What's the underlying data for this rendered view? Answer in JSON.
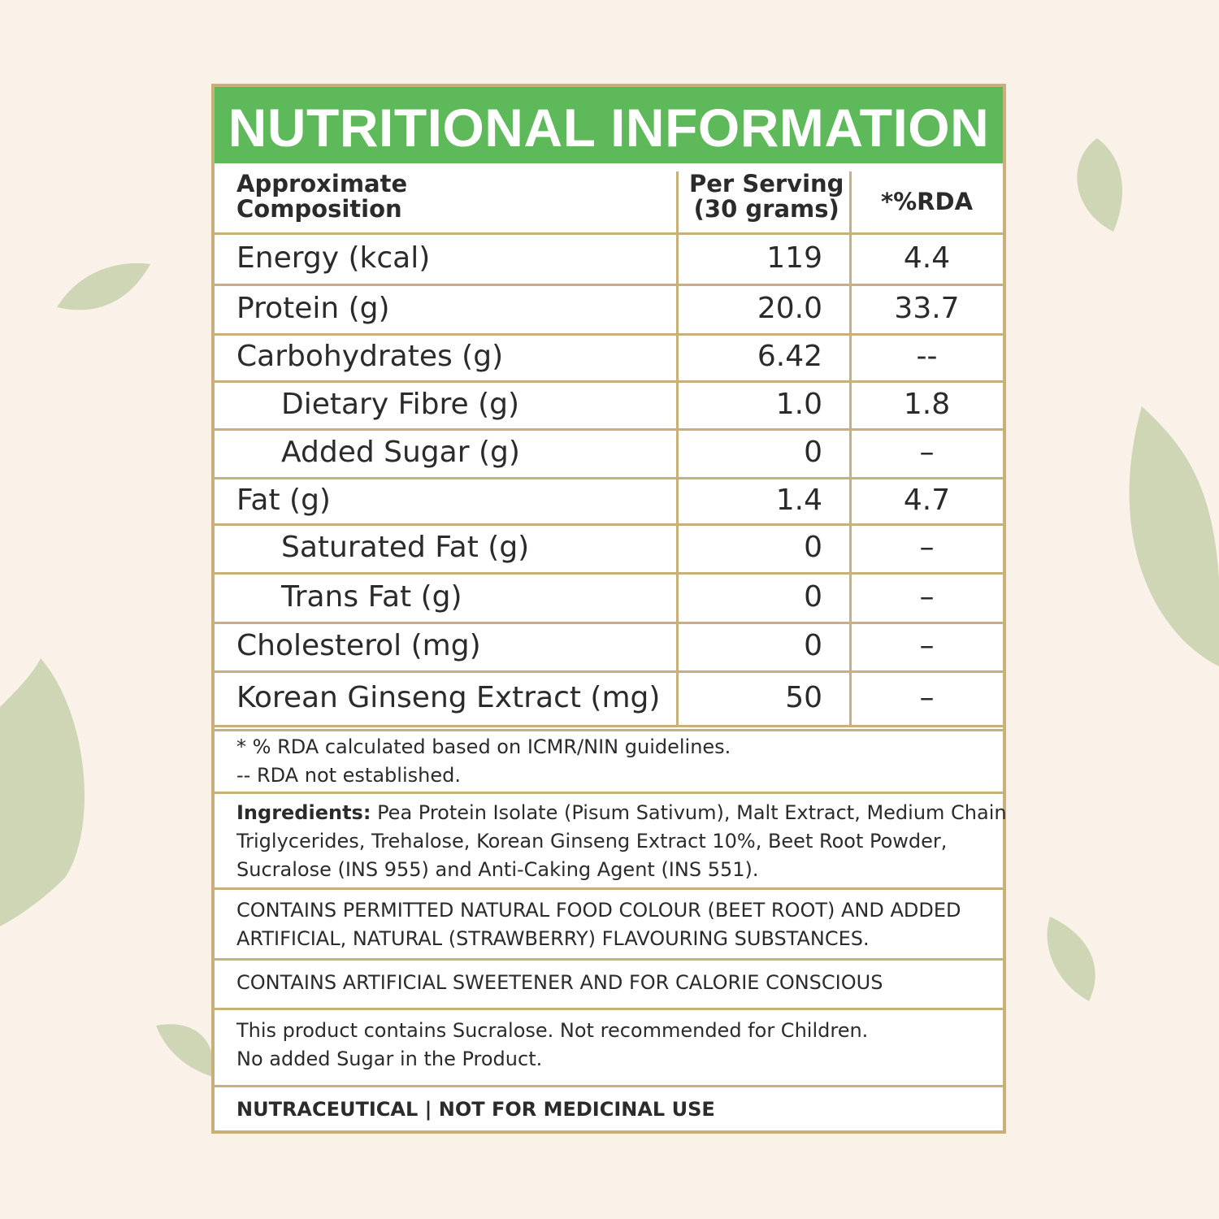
{
  "header": {
    "title": "NUTRITIONAL INFORMATION"
  },
  "table": {
    "headers": [
      [
        "Approximate",
        "Composition"
      ],
      [
        "Per Serving",
        "(30 grams)"
      ],
      [
        "*%RDA"
      ]
    ],
    "rows": [
      [
        "Energy (kcal)",
        "119",
        "4.4"
      ],
      [
        "Protein (g)",
        "20.0",
        "33.7"
      ],
      [
        "Carbohydrates (g)",
        "6.42",
        "--"
      ],
      [
        "Dietary Fibre (g)",
        "1.0",
        "1.8"
      ],
      [
        "Added Sugar (g)",
        "0",
        "–"
      ],
      [
        "Fat (g)",
        "1.4",
        "4.7"
      ],
      [
        "Saturated Fat (g)",
        "0",
        "–"
      ],
      [
        "Trans Fat (g)",
        "0",
        "–"
      ],
      [
        "Cholesterol (mg)",
        "0",
        "–"
      ],
      [
        "Korean Ginseng Extract (mg)",
        "50",
        "–"
      ]
    ]
  },
  "notes": [
    "* % RDA calculated based on ICMR/NIN guidelines.",
    "-- RDA not established."
  ],
  "ingredients": {
    "label": "Ingredients:",
    "lines": [
      " Pea Protein Isolate (Pisum Sativum), Malt Extract, Medium Chain",
      "Triglycerides, Trehalose, Korean Ginseng Extract 10%, Beet Root Powder,",
      "Sucralose (INS 955) and Anti-Caking Agent (INS 551)."
    ]
  },
  "colour_statement": [
    "CONTAINS PERMITTED NATURAL FOOD COLOUR (BEET ROOT) AND ADDED",
    "ARTIFICIAL, NATURAL (STRAWBERRY) FLAVOURING SUBSTANCES."
  ],
  "sweetener_statement": "CONTAINS ARTIFICIAL SWEETENER AND FOR CALORIE CONSCIOUS",
  "warning": [
    "This product contains Sucralose. Not recommended for Children.",
    "No added Sugar in the Product."
  ],
  "footer": "NUTRACEUTICAL | NOT FOR MEDICINAL USE"
}
